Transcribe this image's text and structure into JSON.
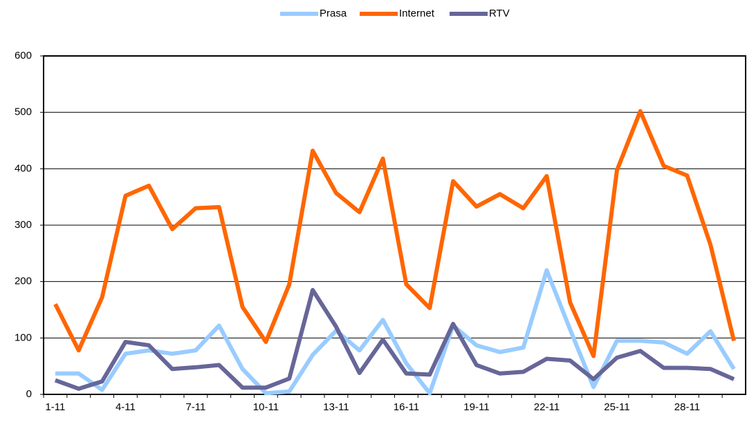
{
  "chart_data": {
    "type": "line",
    "categories": [
      "1-11",
      null,
      null,
      "4-11",
      null,
      null,
      "7-11",
      null,
      null,
      "10-11",
      null,
      null,
      "13-11",
      null,
      null,
      "16-11",
      null,
      null,
      "19-11",
      null,
      null,
      "22-11",
      null,
      null,
      "25-11",
      null,
      null,
      "28-11",
      null,
      null
    ],
    "series": [
      {
        "name": "Prasa",
        "color": "#99ccff",
        "values": [
          37,
          37,
          8,
          72,
          78,
          72,
          78,
          122,
          45,
          2,
          5,
          70,
          113,
          78,
          132,
          55,
          2,
          122,
          87,
          75,
          83,
          220,
          115,
          13,
          95,
          95,
          92,
          72,
          112,
          45
        ]
      },
      {
        "name": "Internet",
        "color": "#ff6600",
        "values": [
          160,
          78,
          172,
          352,
          370,
          293,
          330,
          332,
          155,
          93,
          195,
          432,
          357,
          323,
          418,
          195,
          153,
          378,
          333,
          355,
          330,
          387,
          163,
          68,
          397,
          502,
          405,
          388,
          265,
          95
        ]
      },
      {
        "name": "RTV",
        "color": "#666699",
        "values": [
          25,
          10,
          23,
          93,
          87,
          45,
          48,
          52,
          12,
          12,
          28,
          185,
          120,
          38,
          97,
          37,
          35,
          125,
          52,
          37,
          40,
          63,
          60,
          27,
          65,
          77,
          47,
          47,
          45,
          27
        ]
      }
    ],
    "ylim": [
      0,
      600
    ],
    "yticks": [
      0,
      100,
      200,
      300,
      400,
      500,
      600
    ],
    "grid": true,
    "legend": "top"
  }
}
